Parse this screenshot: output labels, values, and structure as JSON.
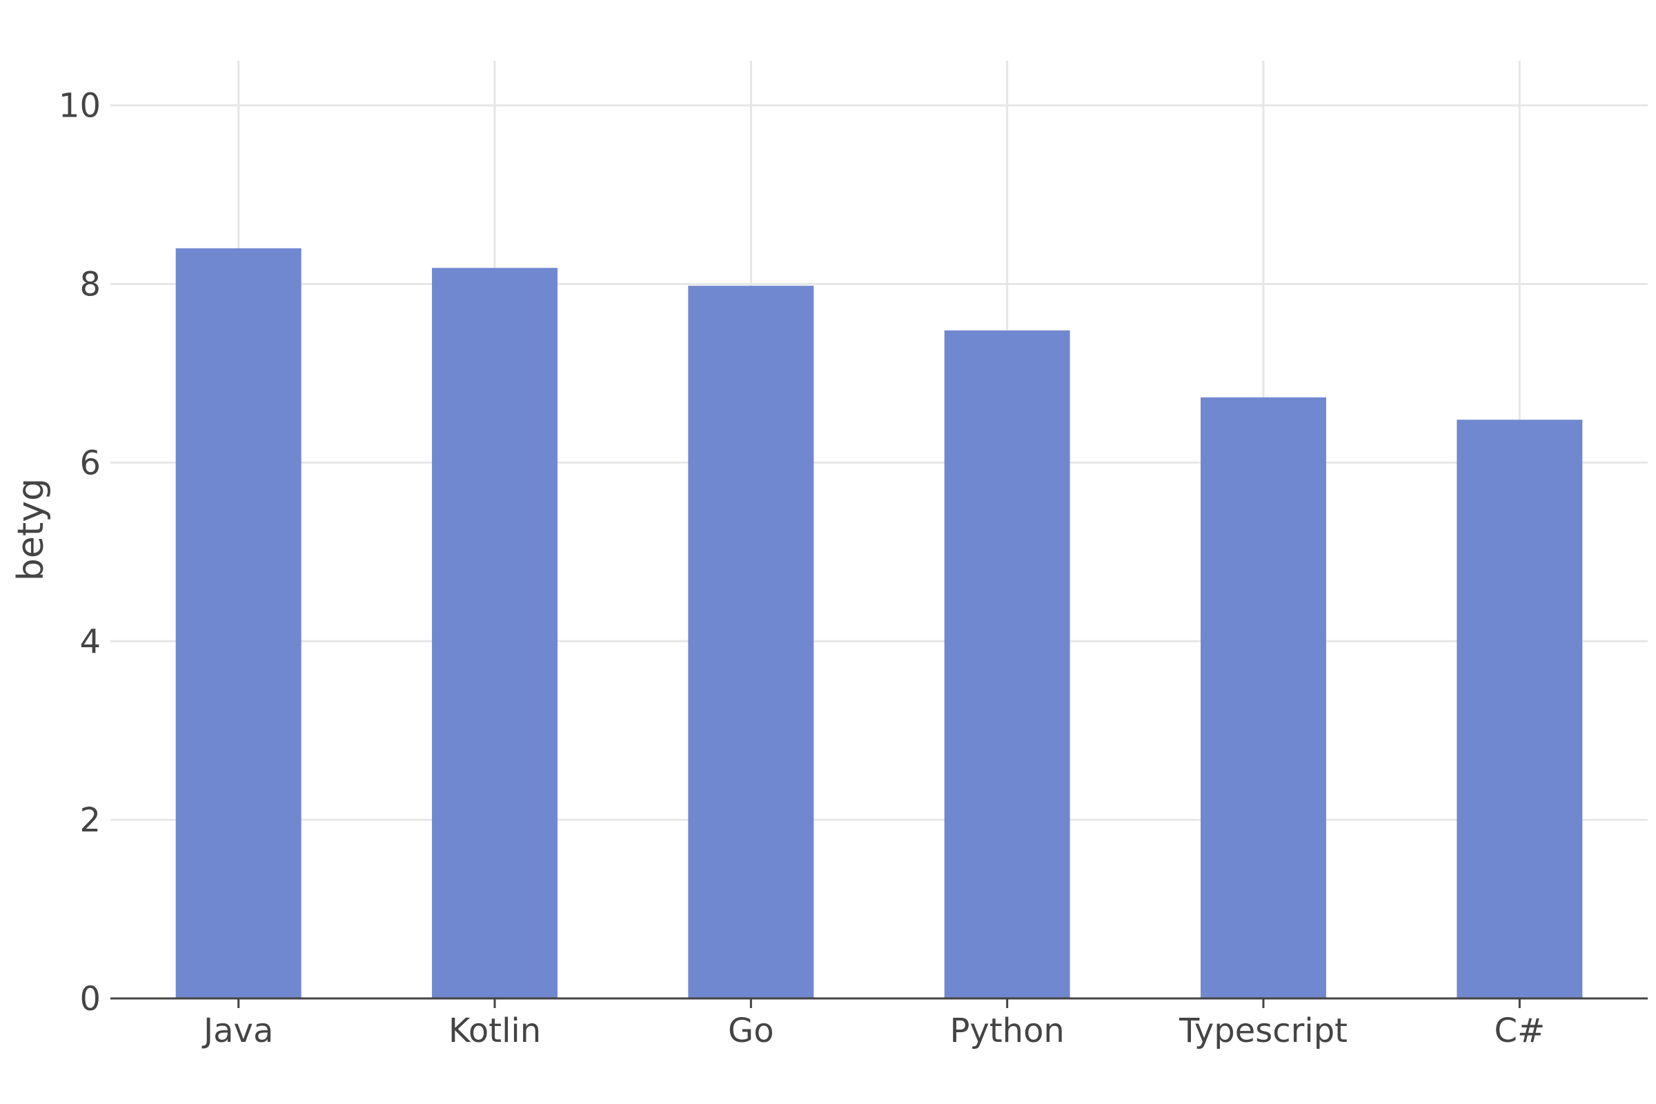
{
  "chart_data": {
    "type": "bar",
    "title": "",
    "xlabel": "",
    "ylabel": "betyg",
    "categories": [
      "Java",
      "Kotlin",
      "Go",
      "Python",
      "Typescript",
      "C#"
    ],
    "values": [
      8.4,
      8.18,
      7.98,
      7.48,
      6.73,
      6.48
    ],
    "ylim": [
      0,
      10.5
    ],
    "yticks": [
      0,
      2,
      4,
      6,
      8,
      10
    ],
    "grid": true,
    "bar_color": "#6d86ce",
    "grid_color": "#e6e6e6",
    "axis_color": "#444444"
  }
}
